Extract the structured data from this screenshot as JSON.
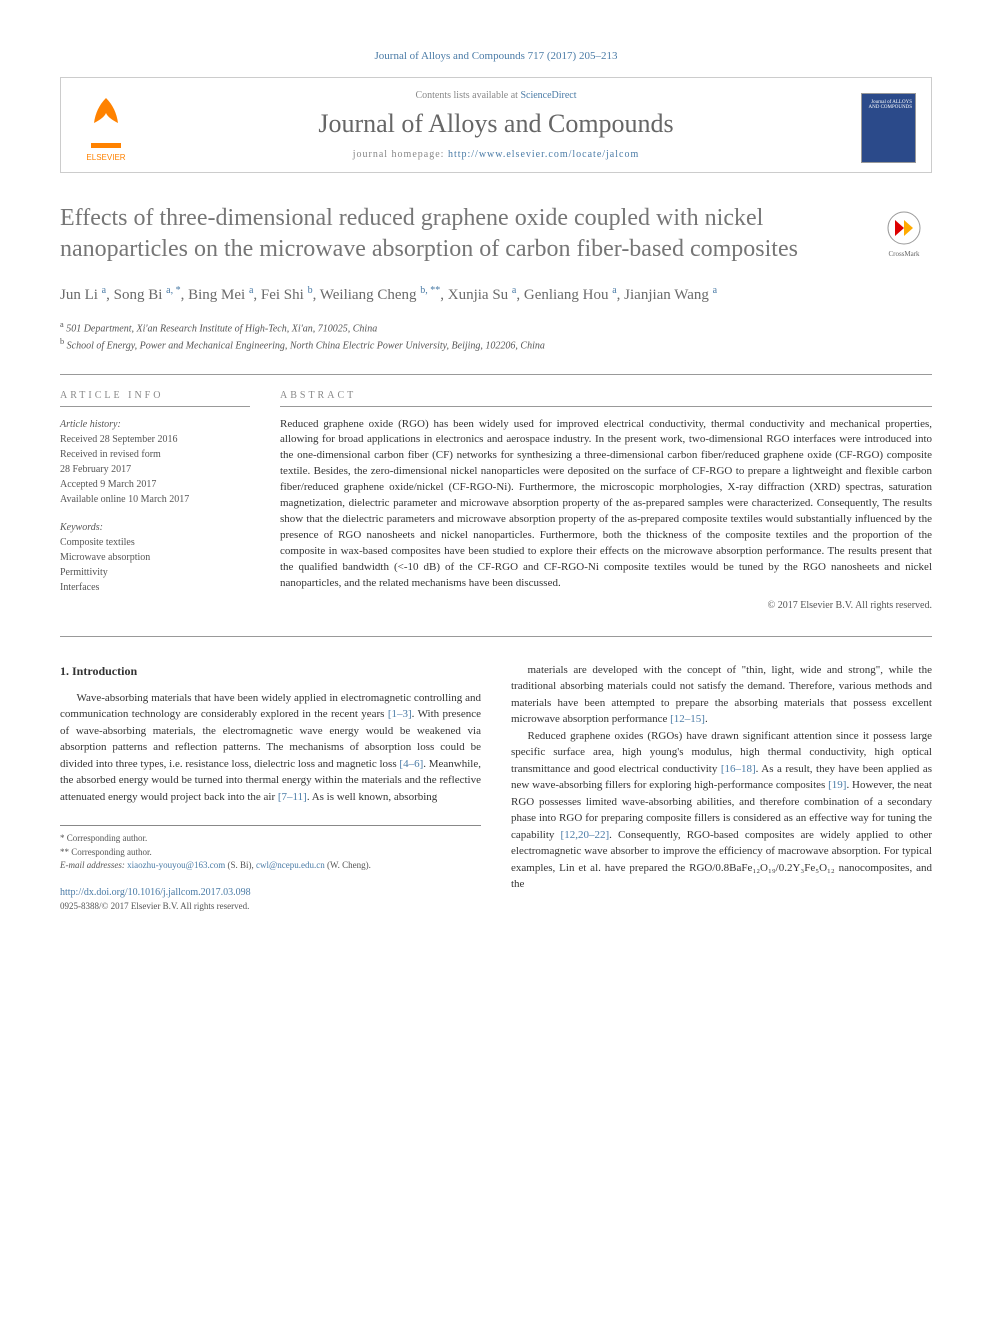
{
  "citation": "Journal of Alloys and Compounds 717 (2017) 205–213",
  "header": {
    "contents_prefix": "Contents lists available at ",
    "contents_link": "ScienceDirect",
    "journal": "Journal of Alloys and Compounds",
    "homepage_prefix": "journal homepage: ",
    "homepage_url": "http://www.elsevier.com/locate/jalcom",
    "publisher": "ELSEVIER",
    "cover_text": "Journal of ALLOYS AND COMPOUNDS"
  },
  "crossmark": "CrossMark",
  "title": "Effects of three-dimensional reduced graphene oxide coupled with nickel nanoparticles on the microwave absorption of carbon fiber-based composites",
  "authors_html": "Jun Li <sup>a</sup>, Song Bi <sup>a, *</sup>, Bing Mei <sup>a</sup>, Fei Shi <sup>b</sup>, Weiliang Cheng <sup>b, **</sup>, Xunjia Su <sup>a</sup>, Genliang Hou <sup>a</sup>, Jianjian Wang <sup>a</sup>",
  "affiliations": [
    {
      "sup": "a",
      "text": "501 Department, Xi'an Research Institute of High-Tech, Xi'an, 710025, China"
    },
    {
      "sup": "b",
      "text": "School of Energy, Power and Mechanical Engineering, North China Electric Power University, Beijing, 102206, China"
    }
  ],
  "info": {
    "label": "ARTICLE INFO",
    "history_label": "Article history:",
    "history": [
      "Received 28 September 2016",
      "Received in revised form",
      "28 February 2017",
      "Accepted 9 March 2017",
      "Available online 10 March 2017"
    ],
    "keywords_label": "Keywords:",
    "keywords": [
      "Composite textiles",
      "Microwave absorption",
      "Permittivity",
      "Interfaces"
    ]
  },
  "abstract": {
    "label": "ABSTRACT",
    "text": "Reduced graphene oxide (RGO) has been widely used for improved electrical conductivity, thermal conductivity and mechanical properties, allowing for broad applications in electronics and aerospace industry. In the present work, two-dimensional RGO interfaces were introduced into the one-dimensional carbon fiber (CF) networks for synthesizing a three-dimensional carbon fiber/reduced graphene oxide (CF-RGO) composite textile. Besides, the zero-dimensional nickel nanoparticles were deposited on the surface of CF-RGO to prepare a lightweight and flexible carbon fiber/reduced graphene oxide/nickel (CF-RGO-Ni). Furthermore, the microscopic morphologies, X-ray diffraction (XRD) spectras, saturation magnetization, dielectric parameter and microwave absorption property of the as-prepared samples were characterized. Consequently, The results show that the dielectric parameters and microwave absorption property of the as-prepared composite textiles would substantially influenced by the presence of RGO nanosheets and nickel nanoparticles. Furthermore, both the thickness of the composite textiles and the proportion of the composite in wax-based composites have been studied to explore their effects on the microwave absorption performance. The results present that the qualified bandwidth (<-10 dB) of the CF-RGO and CF-RGO-Ni composite textiles would be tuned by the RGO nanosheets and nickel nanoparticles, and the related mechanisms have been discussed.",
    "copyright": "© 2017 Elsevier B.V. All rights reserved."
  },
  "body": {
    "heading": "1. Introduction",
    "left": "Wave-absorbing materials that have been widely applied in electromagnetic controlling and communication technology are considerably explored in the recent years [1–3]. With presence of wave-absorbing materials, the electromagnetic wave energy would be weakened via absorption patterns and reflection patterns. The mechanisms of absorption loss could be divided into three types, i.e. resistance loss, dielectric loss and magnetic loss [4–6]. Meanwhile, the absorbed energy would be turned into thermal energy within the materials and the reflective attenuated energy would project back into the air [7–11]. As is well known, absorbing",
    "right1": "materials are developed with the concept of \"thin, light, wide and strong\", while the traditional absorbing materials could not satisfy the demand. Therefore, various methods and materials have been attempted to prepare the absorbing materials that possess excellent microwave absorption performance [12–15].",
    "right2": "Reduced graphene oxides (RGOs) have drawn significant attention since it possess large specific surface area, high young's modulus, high thermal conductivity, high optical transmittance and good electrical conductivity [16–18]. As a result, they have been applied as new wave-absorbing fillers for exploring high-performance composites [19]. However, the neat RGO possesses limited wave-absorbing abilities, and therefore combination of a secondary phase into RGO for preparing composite fillers is considered as an effective way for tuning the capability [12,20–22]. Consequently, RGO-based composites are widely applied to other electromagnetic wave absorber to improve the efficiency of macrowave absorption. For typical examples, Lin et al. have prepared the RGO/0.8BaFe₁₂O₁₉/0.2Y₃Fe₅O₁₂ nanocomposites, and the"
  },
  "footnotes": {
    "corr1": "* Corresponding author.",
    "corr2": "** Corresponding author.",
    "email_label": "E-mail addresses: ",
    "email1": "xiaozhu-youyou@163.com",
    "email1_who": " (S. Bi), ",
    "email2": "cwl@ncepu.edu.cn",
    "email2_who": " (W. Cheng)."
  },
  "doi": "http://dx.doi.org/10.1016/j.jallcom.2017.03.098",
  "issn": "0925-8388/© 2017 Elsevier B.V. All rights reserved.",
  "refs": {
    "r1": "[1–3]",
    "r2": "[4–6]",
    "r3": "[7–11]",
    "r4": "[12–15]",
    "r5": "[16–18]",
    "r6": "[19]",
    "r7": "[12,20–22]"
  }
}
